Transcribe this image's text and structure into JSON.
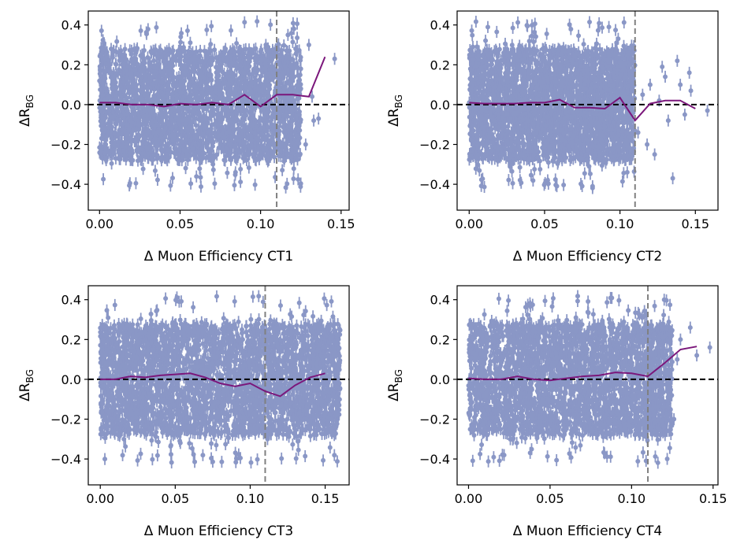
{
  "colors": {
    "scatter": "#8a97c6",
    "trend": "#7b177b",
    "zero_line": "#000000",
    "cut_line": "#808080",
    "axes": "#000000"
  },
  "chart_data": [
    {
      "type": "scatter",
      "xlabel": "Δ Muon Efficiency CT1",
      "ylabel": "ΔR_BG",
      "xlim": [
        -0.007,
        0.155
      ],
      "ylim": [
        -0.53,
        0.47
      ],
      "xticks": [
        0.0,
        0.05,
        0.1,
        0.15
      ],
      "xtick_labels": [
        "0.00",
        "0.05",
        "0.10",
        "0.15"
      ],
      "yticks": [
        -0.4,
        -0.2,
        0.0,
        0.2,
        0.4
      ],
      "ytick_labels": [
        "−0.4",
        "−0.2",
        "0.0",
        "0.2",
        "0.4"
      ],
      "cut_x": 0.11,
      "zero_line_y": 0.0,
      "scatter_cloud": {
        "x_range": [
          0.0,
          0.125
        ],
        "band": [
          -0.28,
          0.28
        ],
        "outlier_spread": 0.42,
        "error_bar": 0.03,
        "n_points": 2600
      },
      "sparse_points": [
        {
          "x": 0.112,
          "y": 0.12
        },
        {
          "x": 0.118,
          "y": 0.06
        },
        {
          "x": 0.12,
          "y": -0.08
        },
        {
          "x": 0.125,
          "y": 0.08
        },
        {
          "x": 0.128,
          "y": -0.2
        },
        {
          "x": 0.132,
          "y": 0.04
        },
        {
          "x": 0.133,
          "y": -0.08
        },
        {
          "x": 0.13,
          "y": 0.3
        },
        {
          "x": 0.136,
          "y": -0.07
        },
        {
          "x": 0.146,
          "y": 0.23
        },
        {
          "x": 0.117,
          "y": 0.35
        }
      ],
      "series": [
        {
          "x": [
            0.0,
            0.01,
            0.02,
            0.03,
            0.04,
            0.05,
            0.06,
            0.07,
            0.08,
            0.09,
            0.1,
            0.11,
            0.12,
            0.13,
            0.14
          ],
          "y": [
            0.01,
            0.01,
            0.0,
            0.0,
            -0.01,
            0.005,
            0.0,
            0.01,
            0.0,
            0.05,
            -0.01,
            0.05,
            0.05,
            0.04,
            0.24
          ]
        }
      ]
    },
    {
      "type": "scatter",
      "xlabel": "Δ Muon Efficiency CT2",
      "ylabel": "ΔR_BG",
      "xlim": [
        -0.008,
        0.165
      ],
      "ylim": [
        -0.53,
        0.47
      ],
      "xticks": [
        0.0,
        0.05,
        0.1,
        0.15
      ],
      "xtick_labels": [
        "0.00",
        "0.05",
        "0.10",
        "0.15"
      ],
      "yticks": [
        -0.4,
        -0.2,
        0.0,
        0.2,
        0.4
      ],
      "ytick_labels": [
        "−0.4",
        "−0.2",
        "0.0",
        "0.2",
        "0.4"
      ],
      "cut_x": 0.11,
      "zero_line_y": 0.0,
      "scatter_cloud": {
        "x_range": [
          0.0,
          0.11
        ],
        "band": [
          -0.28,
          0.28
        ],
        "outlier_spread": 0.42,
        "error_bar": 0.03,
        "n_points": 2600
      },
      "sparse_points": [
        {
          "x": 0.112,
          "y": -0.14
        },
        {
          "x": 0.115,
          "y": 0.05
        },
        {
          "x": 0.118,
          "y": -0.2
        },
        {
          "x": 0.12,
          "y": 0.1
        },
        {
          "x": 0.123,
          "y": -0.25
        },
        {
          "x": 0.126,
          "y": 0.02
        },
        {
          "x": 0.13,
          "y": 0.14
        },
        {
          "x": 0.132,
          "y": -0.08
        },
        {
          "x": 0.135,
          "y": -0.37
        },
        {
          "x": 0.138,
          "y": 0.22
        },
        {
          "x": 0.14,
          "y": 0.1
        },
        {
          "x": 0.143,
          "y": -0.05
        },
        {
          "x": 0.146,
          "y": 0.16
        },
        {
          "x": 0.147,
          "y": 0.07
        },
        {
          "x": 0.158,
          "y": -0.03
        },
        {
          "x": 0.128,
          "y": 0.19
        }
      ],
      "series": [
        {
          "x": [
            0.0,
            0.01,
            0.02,
            0.03,
            0.04,
            0.05,
            0.06,
            0.07,
            0.08,
            0.09,
            0.1,
            0.11,
            0.12,
            0.13,
            0.14,
            0.15
          ],
          "y": [
            0.01,
            0.005,
            0.005,
            0.005,
            0.01,
            0.01,
            0.025,
            -0.015,
            -0.015,
            -0.02,
            0.035,
            -0.08,
            0.005,
            0.02,
            0.02,
            -0.02
          ]
        }
      ]
    },
    {
      "type": "scatter",
      "xlabel": "Δ Muon Efficiency CT3",
      "ylabel": "ΔR_BG",
      "xlim": [
        -0.008,
        0.166
      ],
      "ylim": [
        -0.53,
        0.47
      ],
      "xticks": [
        0.0,
        0.05,
        0.1,
        0.15
      ],
      "xtick_labels": [
        "0.00",
        "0.05",
        "0.10",
        "0.15"
      ],
      "yticks": [
        -0.4,
        -0.2,
        0.0,
        0.2,
        0.4
      ],
      "ytick_labels": [
        "−0.4",
        "−0.2",
        "0.0",
        "0.2",
        "0.4"
      ],
      "cut_x": 0.11,
      "zero_line_y": 0.0,
      "scatter_cloud": {
        "x_range": [
          0.0,
          0.16
        ],
        "band": [
          -0.28,
          0.28
        ],
        "outlier_spread": 0.42,
        "error_bar": 0.03,
        "n_points": 3000
      },
      "sparse_points": [],
      "series": [
        {
          "x": [
            0.0,
            0.01,
            0.02,
            0.03,
            0.04,
            0.05,
            0.06,
            0.07,
            0.08,
            0.09,
            0.1,
            0.11,
            0.12,
            0.13,
            0.14,
            0.15
          ],
          "y": [
            0.0,
            0.0,
            0.015,
            0.01,
            0.02,
            0.025,
            0.03,
            0.01,
            -0.02,
            -0.035,
            -0.02,
            -0.06,
            -0.085,
            -0.03,
            0.01,
            0.03
          ]
        }
      ]
    },
    {
      "type": "scatter",
      "xlabel": "Δ Muon Efficiency CT4",
      "ylabel": "ΔR_BG",
      "xlim": [
        -0.007,
        0.153
      ],
      "ylim": [
        -0.53,
        0.47
      ],
      "xticks": [
        0.0,
        0.05,
        0.1,
        0.15
      ],
      "xtick_labels": [
        "0.00",
        "0.05",
        "0.10",
        "0.15"
      ],
      "yticks": [
        -0.4,
        -0.2,
        0.0,
        0.2,
        0.4
      ],
      "ytick_labels": [
        "−0.4",
        "−0.2",
        "0.0",
        "0.2",
        "0.4"
      ],
      "cut_x": 0.11,
      "zero_line_y": 0.0,
      "scatter_cloud": {
        "x_range": [
          0.0,
          0.125
        ],
        "band": [
          -0.28,
          0.28
        ],
        "outlier_spread": 0.42,
        "error_bar": 0.03,
        "n_points": 2600
      },
      "sparse_points": [
        {
          "x": 0.12,
          "y": 0.4
        },
        {
          "x": 0.123,
          "y": -0.12
        },
        {
          "x": 0.126,
          "y": -0.2
        },
        {
          "x": 0.128,
          "y": 0.1
        },
        {
          "x": 0.13,
          "y": 0.2
        },
        {
          "x": 0.136,
          "y": 0.26
        },
        {
          "x": 0.14,
          "y": 0.12
        },
        {
          "x": 0.148,
          "y": 0.16
        }
      ],
      "series": [
        {
          "x": [
            0.0,
            0.01,
            0.02,
            0.03,
            0.04,
            0.05,
            0.06,
            0.07,
            0.08,
            0.09,
            0.1,
            0.11,
            0.12,
            0.13,
            0.14
          ],
          "y": [
            0.005,
            0.0,
            0.0,
            0.015,
            0.0,
            -0.005,
            0.005,
            0.015,
            0.02,
            0.035,
            0.03,
            0.015,
            0.08,
            0.15,
            0.165
          ]
        }
      ]
    }
  ]
}
